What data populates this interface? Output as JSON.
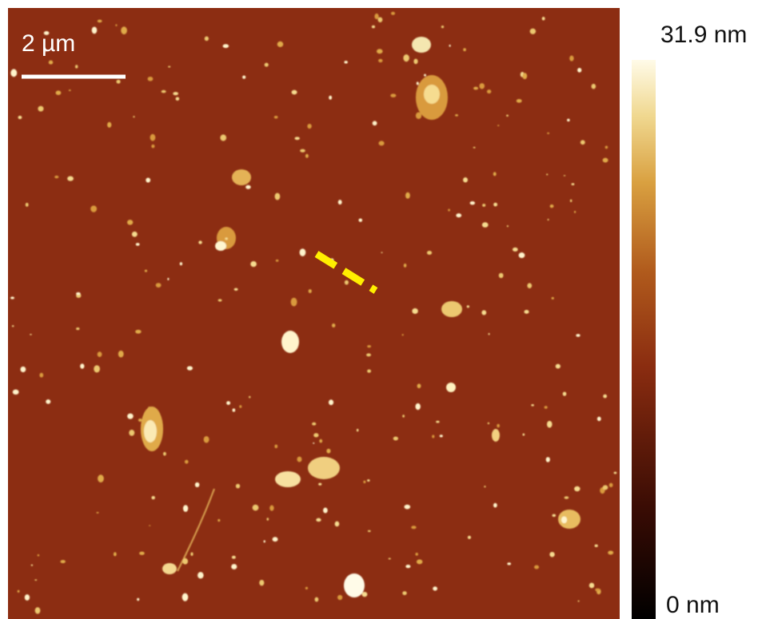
{
  "scale_bar": {
    "label": "2 µm"
  },
  "colorbar": {
    "max_label": "31.9 nm",
    "min_label": "0 nm"
  }
}
